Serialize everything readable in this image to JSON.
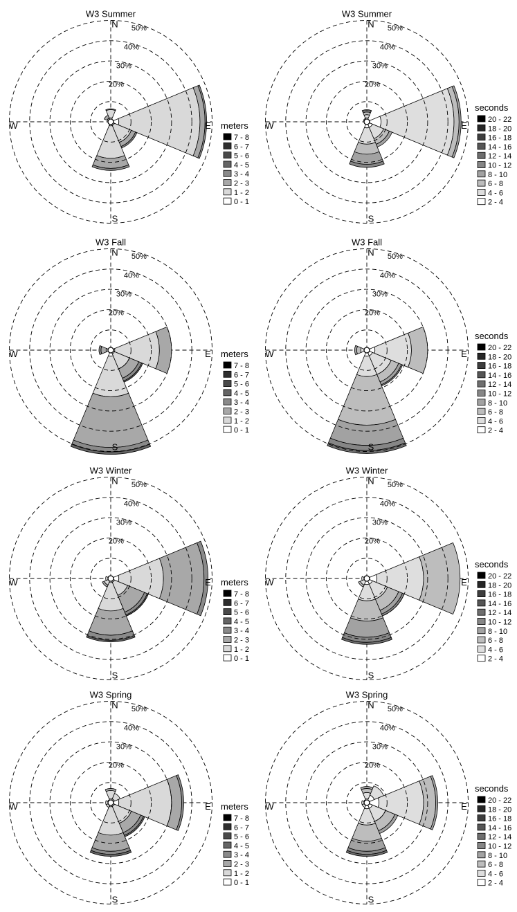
{
  "chart_data": [
    {
      "type": "polar-bar",
      "title": "W3 Summer",
      "legend_title": "meters",
      "legend_entries": [
        "7 - 8",
        "6 - 7",
        "5 - 6",
        "4 - 5",
        "3 - 4",
        "2 - 3",
        "1 - 2",
        "0 - 1"
      ],
      "colors": [
        "#000000",
        "#2e2e2e",
        "#4a4a4a",
        "#656565",
        "#8a8a8a",
        "#a8a8a8",
        "#d9d9d9",
        "#ffffff"
      ],
      "directions": [
        "N",
        "NE",
        "E",
        "SE",
        "S",
        "SW",
        "W",
        "NW"
      ],
      "compass_labels": [
        "N",
        "E",
        "S",
        "W"
      ],
      "ring_labels": [
        "20%",
        "30%",
        "40%",
        "50%"
      ],
      "ring_values": [
        10,
        20,
        30,
        40,
        50
      ],
      "stacks": {
        "N": [
          2,
          4,
          0.4
        ],
        "E": [
          4,
          40,
          2.5,
          0.8
        ],
        "SE": [
          2,
          9,
          2.2,
          0.8
        ],
        "S": [
          2,
          16,
          5,
          1
        ],
        "NW": [
          0.5,
          1.5,
          1.5
        ]
      }
    },
    {
      "type": "polar-bar",
      "title": "W3 Summer",
      "legend_title": "seconds",
      "legend_entries": [
        "20 - 22",
        "18 - 20",
        "16 - 18",
        "14 - 16",
        "12 - 14",
        "10 - 12",
        "8 - 10",
        "6 - 8",
        "4 - 6",
        "2 - 4"
      ],
      "colors": [
        "#000000",
        "#262626",
        "#3d3d3d",
        "#555555",
        "#6e6e6e",
        "#868686",
        "#a2a2a2",
        "#bdbdbd",
        "#dedede",
        "#ffffff"
      ],
      "directions": [
        "N",
        "NE",
        "E",
        "SE",
        "S",
        "SW",
        "W",
        "NW"
      ],
      "compass_labels": [
        "N",
        "E",
        "S",
        "W"
      ],
      "ring_labels": [
        "20%",
        "30%",
        "40%",
        "50%"
      ],
      "ring_values": [
        10,
        20,
        30,
        40,
        50
      ],
      "stacks": {
        "N": [
          2,
          1.5,
          1.3,
          0.7,
          0.5
        ],
        "E": [
          7,
          36,
          2.5,
          1
        ],
        "SE": [
          3,
          6,
          3,
          1.5
        ],
        "S": [
          3,
          8,
          5,
          5,
          1.5
        ],
        "NW": [
          0.8,
          1
        ]
      }
    },
    {
      "type": "polar-bar",
      "title": "W3 Fall",
      "legend_title": "meters",
      "legend_entries": [
        "7 - 8",
        "6 - 7",
        "5 - 6",
        "4 - 5",
        "3 - 4",
        "2 - 3",
        "1 - 2",
        "0 - 1"
      ],
      "colors": [
        "#000000",
        "#2e2e2e",
        "#4a4a4a",
        "#656565",
        "#8a8a8a",
        "#a8a8a8",
        "#d9d9d9",
        "#ffffff"
      ],
      "directions": [
        "N",
        "NE",
        "E",
        "SE",
        "S",
        "SW",
        "W",
        "NW"
      ],
      "compass_labels": [
        "N",
        "E",
        "S",
        "W"
      ],
      "ring_labels": [
        "20%",
        "30%",
        "40%",
        "50%"
      ],
      "ring_values": [
        10,
        20,
        30,
        40,
        50
      ],
      "stacks": {
        "E": [
          2,
          22,
          6
        ],
        "SE": [
          2,
          8,
          5,
          1.5,
          0.6
        ],
        "S": [
          3,
          20,
          25,
          2.2,
          1.2
        ],
        "W": [
          0.8,
          1.5,
          2.5,
          1
        ]
      }
    },
    {
      "type": "polar-bar",
      "title": "W3 Fall",
      "legend_title": "seconds",
      "legend_entries": [
        "20 - 22",
        "18 - 20",
        "16 - 18",
        "14 - 16",
        "12 - 14",
        "10 - 12",
        "8 - 10",
        "6 - 8",
        "4 - 6",
        "2 - 4"
      ],
      "colors": [
        "#000000",
        "#262626",
        "#3d3d3d",
        "#555555",
        "#6e6e6e",
        "#868686",
        "#a2a2a2",
        "#bdbdbd",
        "#dedede",
        "#ffffff"
      ],
      "directions": [
        "N",
        "NE",
        "E",
        "SE",
        "S",
        "SW",
        "W",
        "NW"
      ],
      "compass_labels": [
        "N",
        "E",
        "S",
        "W"
      ],
      "ring_labels": [
        "20%",
        "30%",
        "40%",
        "50%"
      ],
      "ring_values": [
        10,
        20,
        30,
        40,
        50
      ],
      "stacks": {
        "E": [
          4,
          18,
          8
        ],
        "SE": [
          3,
          10,
          4,
          1.5,
          0.6
        ],
        "S": [
          3,
          10,
          24,
          10,
          2.5,
          1.5
        ],
        "W": [
          1,
          2,
          2,
          1
        ]
      }
    },
    {
      "type": "polar-bar",
      "title": "W3 Winter",
      "legend_title": "meters",
      "legend_entries": [
        "7 - 8",
        "6 - 7",
        "5 - 6",
        "4 - 5",
        "3 - 4",
        "2 - 3",
        "1 - 2",
        "0 - 1"
      ],
      "colors": [
        "#000000",
        "#2e2e2e",
        "#4a4a4a",
        "#656565",
        "#8a8a8a",
        "#a8a8a8",
        "#d9d9d9",
        "#ffffff"
      ],
      "directions": [
        "N",
        "NE",
        "E",
        "SE",
        "S",
        "SW",
        "W",
        "NW"
      ],
      "compass_labels": [
        "N",
        "E",
        "S",
        "W"
      ],
      "ring_labels": [
        "20%",
        "30%",
        "40%",
        "50%"
      ],
      "ring_values": [
        10,
        20,
        30,
        40,
        50
      ],
      "stacks": {
        "E": [
          4,
          22,
          20,
          2
        ],
        "SE": [
          2,
          7,
          9,
          1.5,
          0.6
        ],
        "S": [
          2,
          14,
          12,
          2.5,
          0.8
        ],
        "SW": [
          1,
          2.5,
          1
        ],
        "NW": [
          0.5,
          1
        ],
        "W": [
          1,
          1.5
        ]
      }
    },
    {
      "type": "polar-bar",
      "title": "W3 Winter",
      "legend_title": "seconds",
      "legend_entries": [
        "20 - 22",
        "18 - 20",
        "16 - 18",
        "14 - 16",
        "12 - 14",
        "10 - 12",
        "8 - 10",
        "6 - 8",
        "4 - 6",
        "2 - 4"
      ],
      "colors": [
        "#000000",
        "#262626",
        "#3d3d3d",
        "#555555",
        "#6e6e6e",
        "#868686",
        "#a2a2a2",
        "#bdbdbd",
        "#dedede",
        "#ffffff"
      ],
      "directions": [
        "N",
        "NE",
        "E",
        "SE",
        "S",
        "SW",
        "W",
        "NW"
      ],
      "compass_labels": [
        "N",
        "E",
        "S",
        "W"
      ],
      "ring_labels": [
        "20%",
        "30%",
        "40%",
        "50%"
      ],
      "ring_values": [
        10,
        20,
        30,
        40,
        50
      ],
      "stacks": {
        "E": [
          5,
          23,
          18
        ],
        "SE": [
          3,
          8,
          6,
          2,
          1
        ],
        "S": [
          3,
          8,
          10,
          8,
          2.5,
          1
        ],
        "SW": [
          1,
          2.5,
          1
        ],
        "NW": [
          0.5,
          1
        ],
        "W": [
          1,
          1.5
        ]
      }
    },
    {
      "type": "polar-bar",
      "title": "W3 Spring",
      "legend_title": "meters",
      "legend_entries": [
        "7 - 8",
        "6 - 7",
        "5 - 6",
        "4 - 5",
        "3 - 4",
        "2 - 3",
        "1 - 2",
        "0 - 1"
      ],
      "colors": [
        "#000000",
        "#2e2e2e",
        "#4a4a4a",
        "#656565",
        "#8a8a8a",
        "#a8a8a8",
        "#d9d9d9",
        "#ffffff"
      ],
      "directions": [
        "N",
        "NE",
        "E",
        "SE",
        "S",
        "SW",
        "W",
        "NW"
      ],
      "compass_labels": [
        "N",
        "E",
        "S",
        "W"
      ],
      "ring_labels": [
        "20%",
        "30%",
        "40%",
        "50%"
      ],
      "ring_values": [
        10,
        20,
        30,
        40,
        50
      ],
      "stacks": {
        "N": [
          2,
          4,
          1
        ],
        "NE": [
          2,
          3
        ],
        "E": [
          4,
          26,
          5,
          1
        ],
        "SE": [
          2,
          9,
          5,
          1.5,
          0.7
        ],
        "S": [
          2,
          14,
          8,
          1.5,
          1
        ],
        "SW": [
          1,
          1.5
        ],
        "W": [
          1,
          1.5
        ],
        "NW": [
          0.6,
          1
        ]
      }
    },
    {
      "type": "polar-bar",
      "title": "W3 Spring",
      "legend_title": "seconds",
      "legend_entries": [
        "20 - 22",
        "18 - 20",
        "16 - 18",
        "14 - 16",
        "12 - 14",
        "10 - 12",
        "8 - 10",
        "6 - 8",
        "4 - 6",
        "2 - 4"
      ],
      "colors": [
        "#000000",
        "#262626",
        "#3d3d3d",
        "#555555",
        "#6e6e6e",
        "#868686",
        "#a2a2a2",
        "#bdbdbd",
        "#dedede",
        "#ffffff"
      ],
      "directions": [
        "N",
        "NE",
        "E",
        "SE",
        "S",
        "SW",
        "W",
        "NW"
      ],
      "compass_labels": [
        "N",
        "E",
        "S",
        "W"
      ],
      "ring_labels": [
        "20%",
        "30%",
        "40%",
        "50%"
      ],
      "ring_values": [
        10,
        20,
        30,
        40,
        50
      ],
      "stacks": {
        "N": [
          2,
          3,
          2,
          1
        ],
        "NE": [
          4,
          5
        ],
        "E": [
          6,
          22,
          6,
          1
        ],
        "SE": [
          3,
          7,
          5,
          1.5
        ],
        "S": [
          3,
          8,
          8,
          5,
          1.5,
          1
        ],
        "SW": [
          1,
          1.5
        ],
        "W": [
          1,
          1.5
        ],
        "NW": [
          0.6,
          1
        ]
      }
    }
  ]
}
